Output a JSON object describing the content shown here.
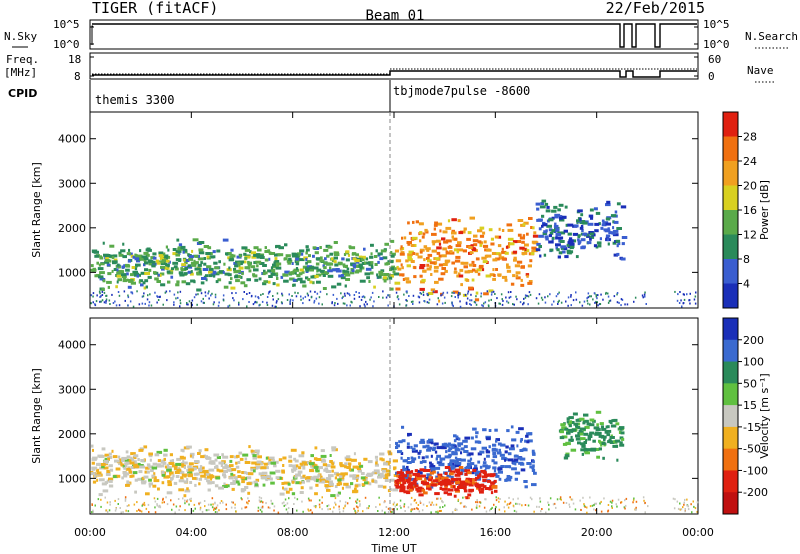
{
  "header": {
    "title": "TIGER (fitACF)",
    "beam": "Beam 01",
    "date": "22/Feb/2015"
  },
  "status_panels": {
    "nsky_label": "N.Sky",
    "nsearch_label": "N.Search",
    "nsky_ticks": [
      "10^5",
      "10^0"
    ],
    "nsearch_ticks": [
      "10^5",
      "10^0"
    ],
    "freq_label": "Freq.",
    "freq_unit": "[MHz]",
    "freq_ticks": [
      "18",
      "8"
    ],
    "nave_label": "Nave",
    "nave_ticks": [
      "60",
      "0"
    ],
    "cpid_label": "CPID",
    "cpid_modes": [
      {
        "name": "themis 3300",
        "start_hour": 0
      },
      {
        "name": "tbjmode7pulse -8600",
        "start_hour": 12
      }
    ],
    "data_gaps_hours": [
      [
        21.2,
        21.4
      ],
      [
        21.55,
        21.75
      ],
      [
        22.0,
        23.0
      ]
    ]
  },
  "chart_data": [
    {
      "type": "heatmap",
      "name": "power",
      "xlabel": "",
      "ylabel": "Slant Range [km]",
      "xlim": [
        0,
        24
      ],
      "ylim": [
        200,
        4600
      ],
      "yticks": [
        1000,
        2000,
        3000,
        4000
      ],
      "colorbar_label": "Power [dB]",
      "colorbar_ticks": [
        4,
        8,
        12,
        16,
        20,
        24,
        28
      ],
      "colors": [
        "#1a2fb8",
        "#3a5ed0",
        "#2a8a5a",
        "#5aaa4a",
        "#d8d020",
        "#f0a020",
        "#f07010",
        "#e02010"
      ],
      "features": [
        {
          "t_start": 0,
          "t_end": 12,
          "range_center_km": 1200,
          "range_width_km": 400,
          "power_db": 12
        },
        {
          "t_start": 12,
          "t_end": 17.5,
          "range_center_km": 1400,
          "range_width_km": 700,
          "power_db": 24
        },
        {
          "t_start": 17.5,
          "t_end": 21,
          "range_center_km": 2000,
          "range_width_km": 500,
          "power_db": 6
        }
      ]
    },
    {
      "type": "heatmap",
      "name": "velocity",
      "xlabel": "Time UT",
      "ylabel": "Slant Range [km]",
      "xlim": [
        0,
        24
      ],
      "ylim": [
        200,
        4600
      ],
      "yticks": [
        1000,
        2000,
        3000,
        4000
      ],
      "xticks": [
        "00:00",
        "04:00",
        "08:00",
        "12:00",
        "16:00",
        "20:00",
        "00:00"
      ],
      "colorbar_label": "Velocity [m s⁻¹]",
      "colorbar_ticks": [
        200,
        100,
        50,
        15,
        -15,
        -50,
        -100,
        -200
      ],
      "colors": [
        "#1a2fb8",
        "#3a6ad0",
        "#2a8a5a",
        "#60c040",
        "#c8c8c0",
        "#f0b020",
        "#f07010",
        "#e02010",
        "#c01010"
      ],
      "features": [
        {
          "t_start": 0,
          "t_end": 12,
          "range_center_km": 1200,
          "range_width_km": 400,
          "velocity": -10
        },
        {
          "t_start": 12,
          "t_end": 17.5,
          "range_center_km": 1500,
          "range_width_km": 500,
          "velocity": 180
        },
        {
          "t_start": 12,
          "t_end": 16,
          "range_center_km": 950,
          "range_width_km": 250,
          "velocity": -120
        },
        {
          "t_start": 18.5,
          "t_end": 21,
          "range_center_km": 2000,
          "range_width_km": 400,
          "velocity": 60
        }
      ]
    }
  ]
}
